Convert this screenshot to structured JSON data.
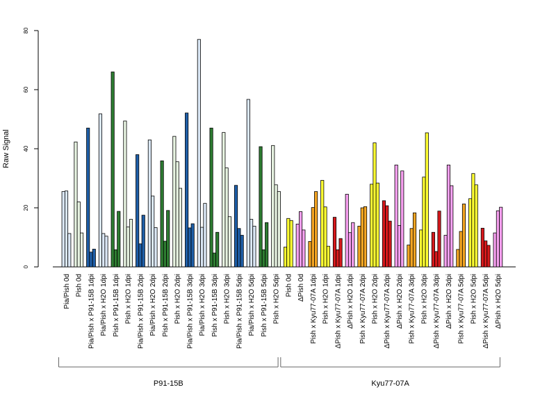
{
  "chart_data": {
    "type": "bar",
    "title": "",
    "ylabel": "Raw Signal",
    "xlabel": "",
    "ylim": [
      0,
      80
    ],
    "yticks": [
      0,
      20,
      40,
      60,
      80
    ],
    "grid": false,
    "legend": "none",
    "bars_per_category": 3,
    "categories": [
      {
        "label": "Pia/Pish 0d",
        "color": "#dbe8f6",
        "values": [
          25.5,
          25.7,
          11.3
        ]
      },
      {
        "label": "Pish 0d",
        "color": "#e8f4e2",
        "values": [
          42.3,
          22.0,
          11.5
        ]
      },
      {
        "label": "Pia/Pish x P91-15B 1dpi",
        "color": "#1f5fa8",
        "values": [
          47.0,
          5.0,
          6.0
        ]
      },
      {
        "label": "Pia/Pish x H2O 1dpi",
        "color": "#dbe8f6",
        "values": [
          51.8,
          11.3,
          10.4
        ]
      },
      {
        "label": "Pish x P91-15B 1dpi",
        "color": "#2e7d32",
        "values": [
          66.0,
          5.8,
          18.8
        ]
      },
      {
        "label": "Pish x H2O 1dpi",
        "color": "#e8f4e2",
        "values": [
          49.4,
          13.5,
          16.1
        ]
      },
      {
        "label": "Pia/Pish x P91-15B 2dpi",
        "color": "#1f5fa8",
        "values": [
          38.0,
          7.8,
          17.5
        ]
      },
      {
        "label": "Pia/Pish x H2O 2dpi",
        "color": "#dbe8f6",
        "values": [
          43.0,
          24.0,
          13.3
        ]
      },
      {
        "label": "Pish x P91-15B 2dpi",
        "color": "#2e7d32",
        "values": [
          35.9,
          8.7,
          19.1
        ]
      },
      {
        "label": "Pish x H2O 2dpi",
        "color": "#e8f4e2",
        "values": [
          44.2,
          35.6,
          26.6
        ]
      },
      {
        "label": "Pia/Pish x P91-15B 3dpi",
        "color": "#1f5fa8",
        "values": [
          52.1,
          13.2,
          14.6
        ]
      },
      {
        "label": "Pia/Pish x H2O 3dpi",
        "color": "#dbe8f6",
        "values": [
          77.0,
          13.4,
          21.5
        ]
      },
      {
        "label": "Pish x P91-15B 3dpi",
        "color": "#2e7d32",
        "values": [
          47.0,
          4.7,
          11.7
        ]
      },
      {
        "label": "Pish x H2O 3dpi",
        "color": "#e8f4e2",
        "values": [
          45.5,
          33.5,
          17.0
        ]
      },
      {
        "label": "Pia/Pish x P91-15B 5dpi",
        "color": "#1f5fa8",
        "values": [
          27.6,
          13.0,
          10.7
        ]
      },
      {
        "label": "Pia/Pish x H2O 5dpi",
        "color": "#dbe8f6",
        "values": [
          56.7,
          16.1,
          13.8
        ]
      },
      {
        "label": "Pish x P91-15B 5dpi",
        "color": "#2e7d32",
        "values": [
          40.7,
          5.8,
          15.0
        ]
      },
      {
        "label": "Pish x H2O 5dpi",
        "color": "#e8f4e2",
        "values": [
          41.1,
          27.8,
          25.5
        ]
      },
      {
        "label": "Pish 0d",
        "color": "#ffff33",
        "values": [
          6.7,
          16.4,
          15.7
        ]
      },
      {
        "label": "ΔPish 0d",
        "color": "#f7a0f0",
        "values": [
          14.5,
          18.7,
          12.5
        ]
      },
      {
        "label": "Pish x Kyu77-07A 1dpi",
        "color": "#f5a623",
        "values": [
          8.6,
          20.1,
          25.5
        ]
      },
      {
        "label": "Pish x H2O 1dpi",
        "color": "#ffff33",
        "values": [
          29.3,
          20.3,
          7.0
        ]
      },
      {
        "label": "ΔPish x Kyu77-07A 1dpi",
        "color": "#d7191c",
        "values": [
          16.8,
          5.8,
          9.6
        ]
      },
      {
        "label": "ΔPish x H2O 1dpi",
        "color": "#f7a0f0",
        "values": [
          24.6,
          11.6,
          15.0
        ]
      },
      {
        "label": "Pish x Kyu77-07A 2dpi",
        "color": "#f5a623",
        "values": [
          13.8,
          20.0,
          20.4
        ]
      },
      {
        "label": "Pish x H2O 2dpi",
        "color": "#ffff33",
        "values": [
          28.0,
          42.0,
          28.4
        ]
      },
      {
        "label": "ΔPish x Kyu77-07A 2dpi",
        "color": "#d7191c",
        "values": [
          22.4,
          20.7,
          15.5
        ]
      },
      {
        "label": "ΔPish x H2O 2dpi",
        "color": "#f7a0f0",
        "values": [
          34.5,
          14.0,
          32.5
        ]
      },
      {
        "label": "Pish x Kyu77-07A 3dpi",
        "color": "#f5a623",
        "values": [
          7.4,
          13.0,
          18.3
        ]
      },
      {
        "label": "Pish x H2O 3dpi",
        "color": "#ffff33",
        "values": [
          12.5,
          30.4,
          45.4
        ]
      },
      {
        "label": "ΔPish x Kyu77-07A 3dpi",
        "color": "#d7191c",
        "values": [
          11.7,
          5.2,
          18.9
        ]
      },
      {
        "label": "ΔPish x H2O 3dpi",
        "color": "#f7a0f0",
        "values": [
          10.7,
          34.5,
          27.5
        ]
      },
      {
        "label": "Pish x Kyu77-07A 5dpi",
        "color": "#f5a623",
        "values": [
          5.9,
          12.0,
          21.3
        ]
      },
      {
        "label": "Pish x H2O 5dpi",
        "color": "#ffff33",
        "values": [
          23.1,
          31.6,
          27.8
        ]
      },
      {
        "label": "ΔPish x Kyu77-07A 5dpi",
        "color": "#d7191c",
        "values": [
          13.1,
          8.8,
          7.3
        ]
      },
      {
        "label": "ΔPish x H2O 5dpi",
        "color": "#f7a0f0",
        "values": [
          11.5,
          19.0,
          20.2
        ]
      }
    ],
    "groups": [
      {
        "label": "P91-15B",
        "from": 0,
        "to": 17
      },
      {
        "label": "Kyu77-07A",
        "from": 18,
        "to": 35
      }
    ]
  }
}
